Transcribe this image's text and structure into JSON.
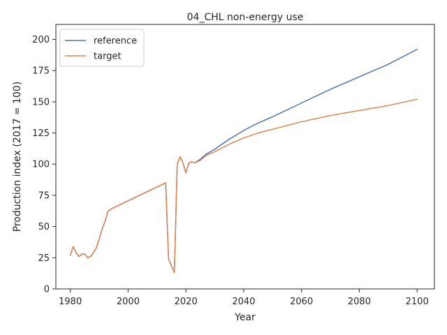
{
  "chart_data": {
    "type": "line",
    "title": "04_CHL non-energy use",
    "xlabel": "Year",
    "ylabel": "Production index (2017 = 100)",
    "xlim": [
      1975,
      2106
    ],
    "ylim": [
      0,
      212
    ],
    "xticks": [
      1980,
      2000,
      2020,
      2040,
      2060,
      2080,
      2100
    ],
    "yticks": [
      0,
      25,
      50,
      75,
      100,
      125,
      150,
      175,
      200
    ],
    "grid": false,
    "legend_position": "top-left",
    "series": [
      {
        "name": "reference",
        "color": "#4c72b0",
        "x": [
          1980,
          1981,
          1982,
          1983,
          1984,
          1985,
          1986,
          1987,
          1988,
          1989,
          1990,
          1991,
          1992,
          1993,
          1994,
          2013,
          2014,
          2016,
          2017,
          2018,
          2019,
          2020,
          2021,
          2022,
          2023,
          2025,
          2027,
          2030,
          2035,
          2040,
          2045,
          2050,
          2060,
          2070,
          2080,
          2090,
          2100
        ],
        "values": [
          27,
          34,
          29,
          26,
          28,
          28,
          25,
          26,
          29,
          33,
          40,
          48,
          54,
          62,
          64,
          85,
          24,
          13,
          100,
          106,
          101,
          93,
          101,
          102,
          101,
          104,
          108,
          112,
          120,
          127,
          133,
          138,
          149,
          160,
          170,
          180,
          192
        ]
      },
      {
        "name": "target",
        "color": "#dd8452",
        "x": [
          1980,
          1981,
          1982,
          1983,
          1984,
          1985,
          1986,
          1987,
          1988,
          1989,
          1990,
          1991,
          1992,
          1993,
          1994,
          2013,
          2014,
          2016,
          2017,
          2018,
          2019,
          2020,
          2021,
          2022,
          2023,
          2025,
          2027,
          2030,
          2035,
          2040,
          2045,
          2050,
          2060,
          2070,
          2080,
          2090,
          2100
        ],
        "values": [
          27,
          34,
          29,
          26,
          28,
          28,
          25,
          26,
          29,
          33,
          40,
          48,
          54,
          62,
          64,
          85,
          24,
          13,
          100,
          106,
          101,
          93,
          101,
          102,
          101,
          103,
          107,
          110,
          116,
          121,
          125,
          128,
          134,
          139,
          143,
          147,
          152
        ]
      }
    ]
  }
}
